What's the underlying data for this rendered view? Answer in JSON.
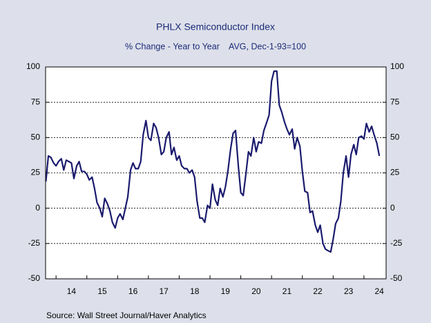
{
  "chart_data": {
    "type": "line",
    "title": "PHLX Semiconductor Index",
    "subtitle": "% Change - Year to Year    AVG, Dec-1-93=100",
    "source": "Source:  Wall Street Journal/Haver Analytics",
    "color": "#1a1a6e",
    "grid": true,
    "xlim": [
      13.66,
      24.72
    ],
    "xticks": [
      14,
      15,
      16,
      17,
      18,
      19,
      20,
      21,
      22,
      23,
      24
    ],
    "ylim": [
      -50,
      100
    ],
    "yticks": [
      -50,
      -25,
      0,
      25,
      50,
      75,
      100
    ],
    "y2lim": [
      -50,
      100
    ],
    "y2ticks": [
      -50,
      -25,
      0,
      25,
      50,
      75,
      100
    ],
    "x": [
      13.67,
      13.75,
      13.83,
      13.92,
      14.0,
      14.08,
      14.17,
      14.25,
      14.33,
      14.42,
      14.5,
      14.58,
      14.67,
      14.75,
      14.83,
      14.92,
      15.0,
      15.08,
      15.17,
      15.25,
      15.33,
      15.42,
      15.5,
      15.58,
      15.67,
      15.75,
      15.83,
      15.92,
      16.0,
      16.08,
      16.17,
      16.25,
      16.33,
      16.42,
      16.5,
      16.58,
      16.67,
      16.75,
      16.83,
      16.92,
      17.0,
      17.08,
      17.17,
      17.25,
      17.33,
      17.42,
      17.5,
      17.58,
      17.67,
      17.75,
      17.83,
      17.92,
      18.0,
      18.08,
      18.17,
      18.25,
      18.33,
      18.42,
      18.5,
      18.58,
      18.67,
      18.75,
      18.83,
      18.92,
      19.0,
      19.08,
      19.17,
      19.25,
      19.33,
      19.42,
      19.5,
      19.58,
      19.67,
      19.75,
      19.83,
      19.92,
      20.0,
      20.08,
      20.17,
      20.25,
      20.33,
      20.42,
      20.5,
      20.58,
      20.67,
      20.75,
      20.83,
      20.92,
      21.0,
      21.08,
      21.17,
      21.25,
      21.33,
      21.42,
      21.5,
      21.58,
      21.67,
      21.75,
      21.83,
      21.92,
      22.0,
      22.08,
      22.17,
      22.25,
      22.33,
      22.42,
      22.5,
      22.58,
      22.67,
      22.75,
      22.83,
      22.92,
      23.0,
      23.08,
      23.17,
      23.25,
      23.33,
      23.42,
      23.5,
      23.58,
      23.67,
      23.75,
      23.83,
      23.92,
      24.0,
      24.08,
      24.17,
      24.25,
      24.33,
      24.42,
      24.5
    ],
    "values": [
      19,
      37,
      36,
      32,
      30,
      33,
      35,
      27,
      34,
      33,
      32,
      21,
      30,
      33,
      26,
      26,
      24,
      20,
      22,
      14,
      4,
      0,
      -6,
      7,
      3,
      -2,
      -10,
      -14,
      -7,
      -4,
      -8,
      0,
      8,
      27,
      32,
      28,
      28,
      33,
      52,
      62,
      50,
      48,
      60,
      57,
      50,
      38,
      40,
      50,
      54,
      38,
      43,
      34,
      37,
      30,
      28,
      28,
      25,
      27,
      22,
      5,
      -7,
      -7,
      -10,
      2,
      0,
      17,
      6,
      2,
      14,
      8,
      15,
      26,
      42,
      53,
      55,
      30,
      11,
      9,
      25,
      40,
      37,
      50,
      40,
      47,
      46,
      55,
      60,
      66,
      90,
      97,
      97,
      73,
      68,
      61,
      56,
      52,
      56,
      42,
      50,
      44,
      26,
      12,
      11,
      -3,
      -2,
      -12,
      -17,
      -12,
      -25,
      -29,
      -30,
      -31,
      -22,
      -11,
      -7,
      5,
      25,
      37,
      22,
      38,
      45,
      38,
      50,
      51,
      49,
      60,
      54,
      58,
      52,
      46,
      37
    ]
  }
}
